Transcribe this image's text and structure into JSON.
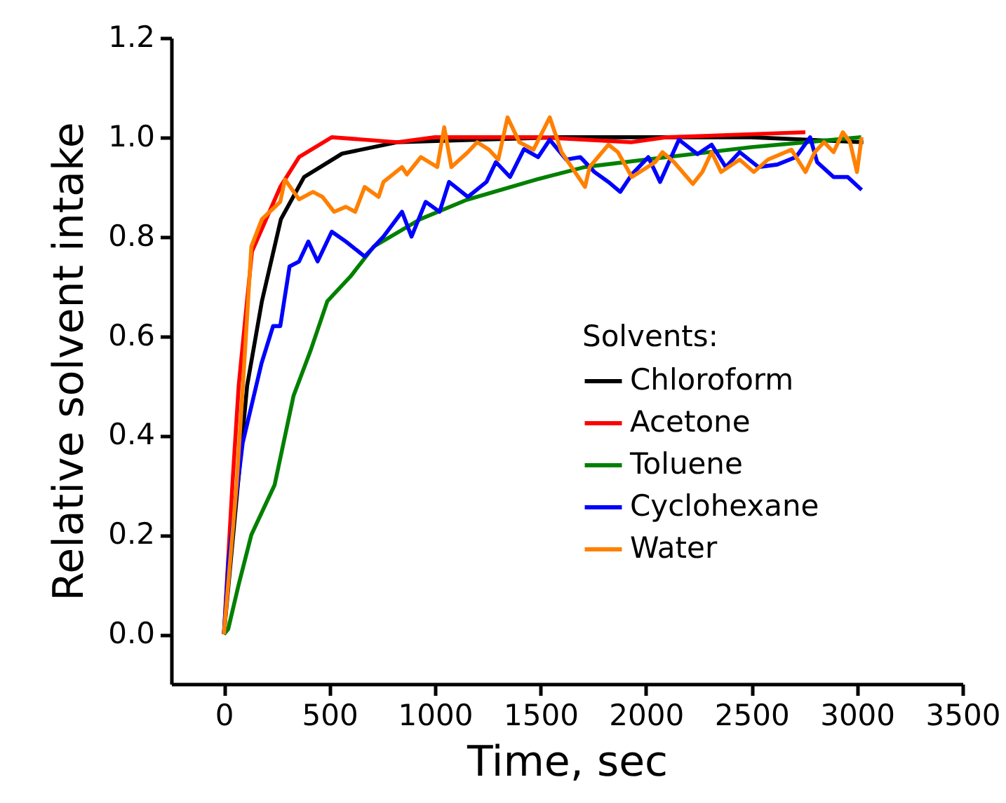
{
  "chart_data": {
    "type": "line",
    "xlabel": "Time, sec",
    "ylabel": "Relative solvent intake",
    "legend_title": "Solvents:",
    "legend": "right",
    "grid": false,
    "xlim": [
      -250,
      3500
    ],
    "xticks": [
      0,
      500,
      1000,
      1500,
      2000,
      2500,
      3000,
      3500
    ],
    "ylim": [
      -0.1,
      1.2
    ],
    "yticks": [
      {
        "value": 0,
        "label": "0.0"
      },
      {
        "value": 0.2,
        "label": "0.2"
      },
      {
        "value": 0.4,
        "label": "0.4"
      },
      {
        "value": 0.6,
        "label": "0.6"
      },
      {
        "value": 0.8,
        "label": "0.8"
      },
      {
        "value": 1,
        "label": "1.0"
      },
      {
        "value": 1.2,
        "label": "1.2"
      }
    ],
    "series": [
      {
        "name": "Chloroform",
        "color": "#000000",
        "x": [
          0,
          110,
          180,
          270,
          380,
          560,
          820,
          1200,
          1600,
          2000,
          2500,
          3030
        ],
        "values": [
          0,
          0.5,
          0.67,
          0.835,
          0.92,
          0.967,
          0.99,
          0.995,
          1.0,
          1.0,
          1.0,
          0.99
        ]
      },
      {
        "name": "Acetone",
        "color": "#ff0000",
        "x": [
          0,
          40,
          70,
          100,
          133,
          200,
          267,
          356,
          511,
          822,
          1000,
          1500,
          1930,
          2100,
          2755
        ],
        "values": [
          0,
          0.3,
          0.5,
          0.63,
          0.77,
          0.835,
          0.9,
          0.96,
          1.0,
          0.99,
          1.0,
          1.0,
          0.99,
          1.0,
          1.01
        ]
      },
      {
        "name": "Toluene",
        "color": "#008000",
        "x": [
          0,
          20,
          70,
          130,
          240,
          330,
          410,
          490,
          600,
          710,
          930,
          1150,
          1490,
          1710,
          2000,
          2500,
          3020
        ],
        "values": [
          0,
          0.01,
          0.1,
          0.2,
          0.3,
          0.48,
          0.57,
          0.67,
          0.72,
          0.78,
          0.835,
          0.874,
          0.916,
          0.94,
          0.955,
          0.98,
          1.0
        ]
      },
      {
        "name": "Cyclohexane",
        "color": "#0000ff",
        "x": [
          0,
          22,
          89,
          178,
          233,
          267,
          311,
          356,
          400,
          444,
          511,
          578,
          667,
          756,
          844,
          889,
          956,
          1022,
          1067,
          1156,
          1244,
          1289,
          1356,
          1422,
          1489,
          1544,
          1622,
          1689,
          1756,
          1822,
          1878,
          1933,
          2011,
          2067,
          2156,
          2244,
          2311,
          2378,
          2444,
          2533,
          2622,
          2711,
          2778,
          2811,
          2889,
          2956,
          3022
        ],
        "values": [
          0,
          0.15,
          0.385,
          0.545,
          0.62,
          0.62,
          0.74,
          0.75,
          0.79,
          0.75,
          0.81,
          0.79,
          0.76,
          0.8,
          0.85,
          0.8,
          0.87,
          0.85,
          0.91,
          0.88,
          0.91,
          0.95,
          0.92,
          0.976,
          0.96,
          0.995,
          0.955,
          0.96,
          0.93,
          0.91,
          0.89,
          0.925,
          0.96,
          0.91,
          0.995,
          0.966,
          0.985,
          0.94,
          0.97,
          0.94,
          0.945,
          0.96,
          1.0,
          0.95,
          0.92,
          0.92,
          0.894
        ]
      },
      {
        "name": "Water",
        "color": "#ff8000",
        "x": [
          0,
          60,
          100,
          130,
          180,
          267,
          289,
          356,
          422,
          467,
          522,
          578,
          622,
          667,
          733,
          756,
          844,
          867,
          933,
          1011,
          1044,
          1078,
          1156,
          1200,
          1256,
          1300,
          1344,
          1400,
          1467,
          1544,
          1600,
          1711,
          1733,
          1822,
          1867,
          1933,
          2044,
          2078,
          2133,
          2222,
          2267,
          2311,
          2356,
          2444,
          2511,
          2578,
          2689,
          2756,
          2800,
          2844,
          2889,
          2933,
          2967,
          3000,
          3022
        ],
        "values": [
          0,
          0.3,
          0.57,
          0.78,
          0.835,
          0.87,
          0.915,
          0.875,
          0.89,
          0.88,
          0.85,
          0.86,
          0.85,
          0.9,
          0.88,
          0.91,
          0.94,
          0.925,
          0.96,
          0.94,
          1.02,
          0.94,
          0.97,
          0.99,
          0.975,
          0.955,
          1.04,
          0.99,
          0.975,
          1.04,
          0.97,
          0.9,
          0.94,
          0.985,
          0.97,
          0.92,
          0.95,
          0.97,
          0.95,
          0.906,
          0.93,
          0.97,
          0.93,
          0.955,
          0.93,
          0.955,
          0.975,
          0.93,
          0.97,
          0.99,
          0.97,
          1.01,
          0.99,
          0.93,
          1.0
        ]
      }
    ]
  }
}
